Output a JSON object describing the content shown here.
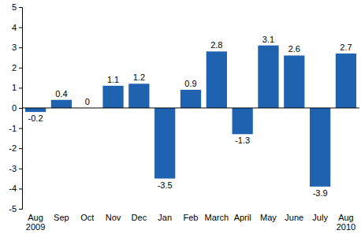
{
  "chart_data": {
    "type": "bar",
    "categories": [
      "Aug\n2009",
      "Sep",
      "Oct",
      "Nov",
      "Dec",
      "Jan",
      "Feb",
      "March",
      "April",
      "May",
      "June",
      "July",
      "Aug\n2010"
    ],
    "values": [
      -0.2,
      0.4,
      0,
      1.1,
      1.2,
      -3.5,
      0.9,
      2.8,
      -1.3,
      3.1,
      2.6,
      -3.9,
      2.7
    ],
    "color": "#1f62b0",
    "ylim": [
      -5,
      5
    ],
    "yticks": [
      -5,
      -4,
      -3,
      -2,
      -1,
      0,
      1,
      2,
      3,
      4,
      5
    ],
    "grid": false,
    "data_labels": true
  }
}
